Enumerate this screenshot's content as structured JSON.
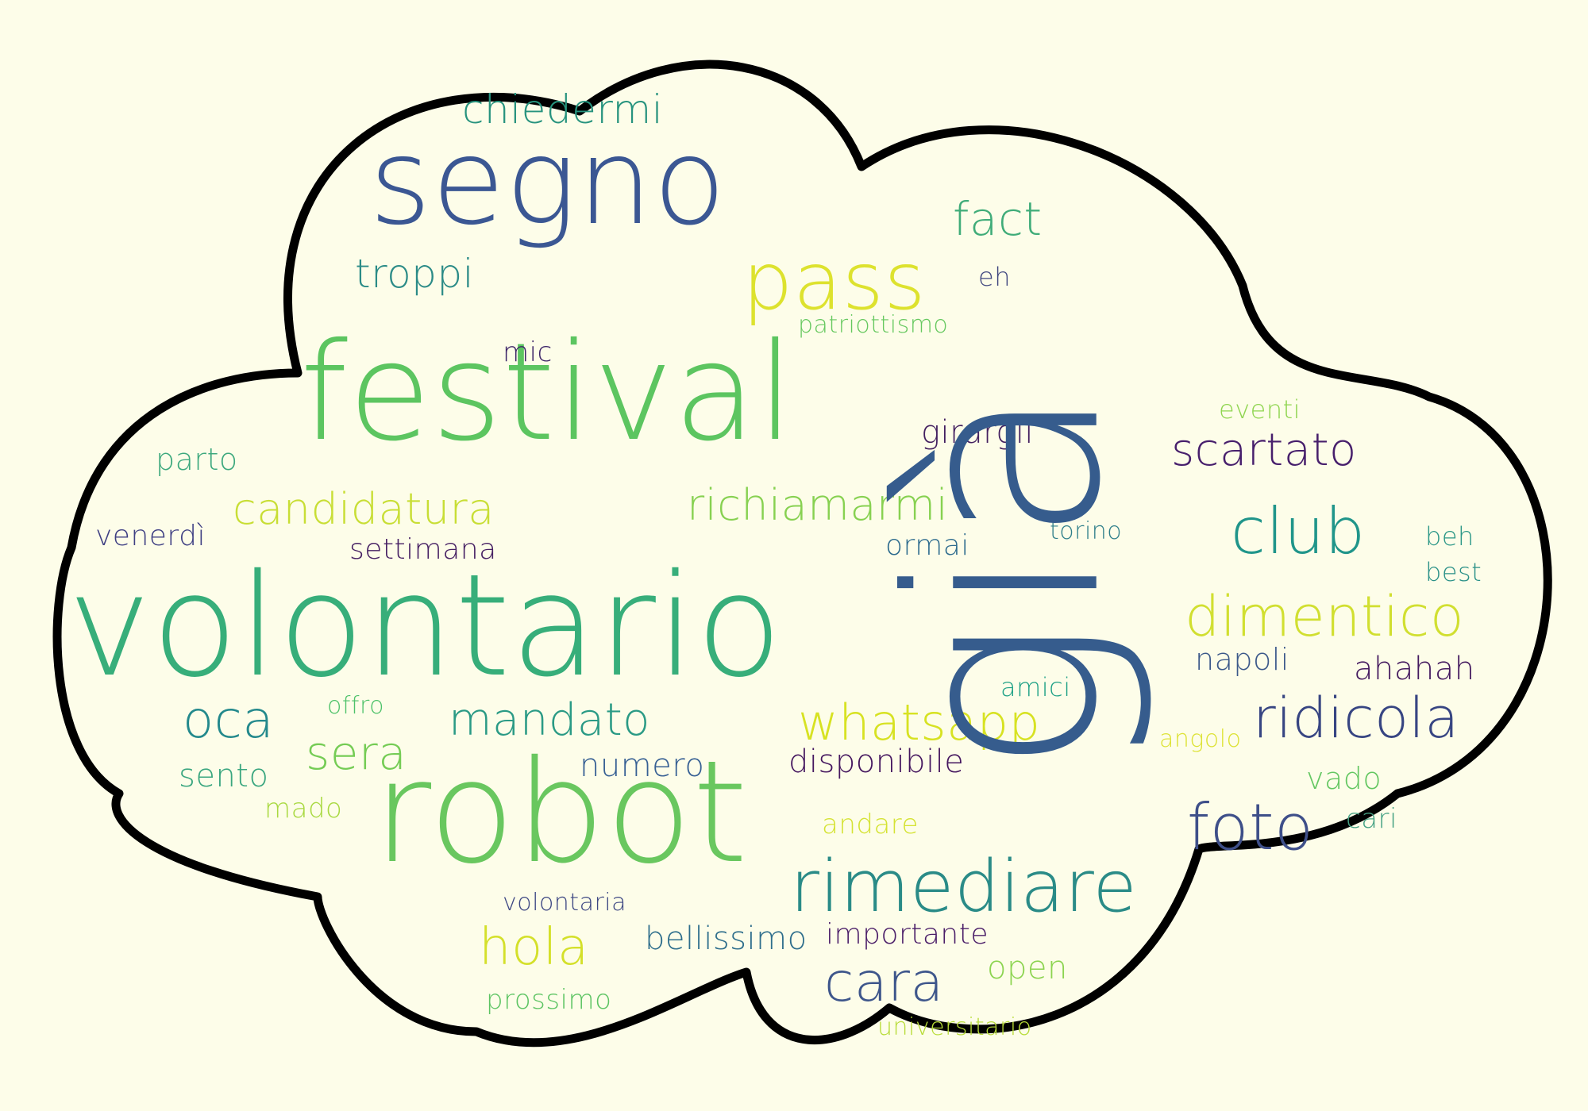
{
  "palette": {
    "background": "#fdfde9",
    "outline": "#000000",
    "fill": "#fdfde9"
  },
  "words": [
    {
      "text": "segno",
      "color": "#3b5793"
    },
    {
      "text": "chiedermi",
      "color": "#27937e"
    },
    {
      "text": "fact",
      "color": "#40ac79"
    },
    {
      "text": "troppi",
      "color": "#2b8b87"
    },
    {
      "text": "pass",
      "color": "#dde22e"
    },
    {
      "text": "eh",
      "color": "#3f467f"
    },
    {
      "text": "patriottismo",
      "color": "#66c85f"
    },
    {
      "text": "festival",
      "color": "#5cc560"
    },
    {
      "text": "mic",
      "color": "#3d2468"
    },
    {
      "text": "girargli",
      "color": "#432060"
    },
    {
      "text": "eventi",
      "color": "#8fd550"
    },
    {
      "text": "parto",
      "color": "#3ea97e"
    },
    {
      "text": "scartato",
      "color": "#471f6c"
    },
    {
      "text": "candidatura",
      "color": "#c8de35"
    },
    {
      "text": "richiamarmi",
      "color": "#87d151"
    },
    {
      "text": "club",
      "color": "#20958a"
    },
    {
      "text": "venerdì",
      "color": "#3e3f83"
    },
    {
      "text": "settimana",
      "color": "#462063"
    },
    {
      "text": "ormai",
      "color": "#2e6c8e"
    },
    {
      "text": "torino",
      "color": "#2f7f8a"
    },
    {
      "text": "beh",
      "color": "#2b9787"
    },
    {
      "text": "best",
      "color": "#2b9188"
    },
    {
      "text": "volontario",
      "color": "#37ae7a"
    },
    {
      "text": "dimentico",
      "color": "#d1df30"
    },
    {
      "text": "napoli",
      "color": "#3c598a"
    },
    {
      "text": "ahahah",
      "color": "#441a5f"
    },
    {
      "text": "amici",
      "color": "#1fa186"
    },
    {
      "text": "oca",
      "color": "#23898c"
    },
    {
      "text": "offro",
      "color": "#4ec26a"
    },
    {
      "text": "mandato",
      "color": "#2a9a85"
    },
    {
      "text": "whatsapp",
      "color": "#d7e222"
    },
    {
      "text": "ridicola",
      "color": "#374582"
    },
    {
      "text": "sera",
      "color": "#75cc55"
    },
    {
      "text": "sento",
      "color": "#3aa67f"
    },
    {
      "text": "numero",
      "color": "#376094"
    },
    {
      "text": "disponibile",
      "color": "#45175f"
    },
    {
      "text": "angolo",
      "color": "#dde234"
    },
    {
      "text": "vado",
      "color": "#64c762"
    },
    {
      "text": "mado",
      "color": "#a9d941"
    },
    {
      "text": "robot",
      "color": "#69c75f"
    },
    {
      "text": "andare",
      "color": "#d5e334"
    },
    {
      "text": "foto",
      "color": "#3e4f89"
    },
    {
      "text": "cari",
      "color": "#46a284"
    },
    {
      "text": "rimediare",
      "color": "#2a8b87"
    },
    {
      "text": "volontaria",
      "color": "#3d4783"
    },
    {
      "text": "hola",
      "color": "#d4e02a"
    },
    {
      "text": "bellissimo",
      "color": "#2e6e8c"
    },
    {
      "text": "importante",
      "color": "#4a1d68"
    },
    {
      "text": "cara",
      "color": "#3e568b"
    },
    {
      "text": "open",
      "color": "#8cd450"
    },
    {
      "text": "prossimo",
      "color": "#5dc463"
    },
    {
      "text": "universitario",
      "color": "#b8dc38"
    },
    {
      "text": "già",
      "color": "#365c8d"
    }
  ]
}
